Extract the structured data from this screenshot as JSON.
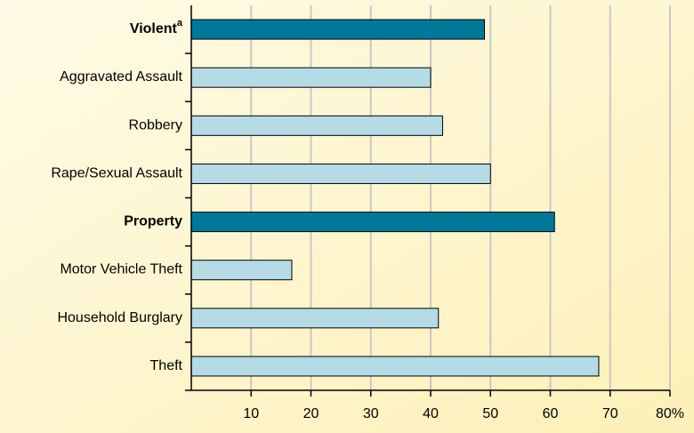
{
  "chart_data": {
    "type": "barh",
    "categories": [
      "Violent",
      "Aggravated Assault",
      "Robbery",
      "Rape/Sexual Assault",
      "Property",
      "Motor Vehicle Theft",
      "Household Burglary",
      "Theft"
    ],
    "category_notes": [
      "a",
      null,
      null,
      null,
      null,
      null,
      null,
      null
    ],
    "bold": [
      true,
      false,
      false,
      false,
      true,
      false,
      false,
      false
    ],
    "values": [
      49,
      40,
      42,
      50,
      60.7,
      16.8,
      41.3,
      68.1
    ],
    "colors": [
      "#00789a",
      "#b4dbe6",
      "#b4dbe6",
      "#b4dbe6",
      "#00789a",
      "#b4dbe6",
      "#b4dbe6",
      "#b4dbe6"
    ],
    "xlim": [
      0,
      80
    ],
    "xticks": [
      10,
      20,
      30,
      40,
      50,
      60,
      70,
      {
        "value": 80,
        "label": "80%"
      }
    ],
    "grid": true
  }
}
